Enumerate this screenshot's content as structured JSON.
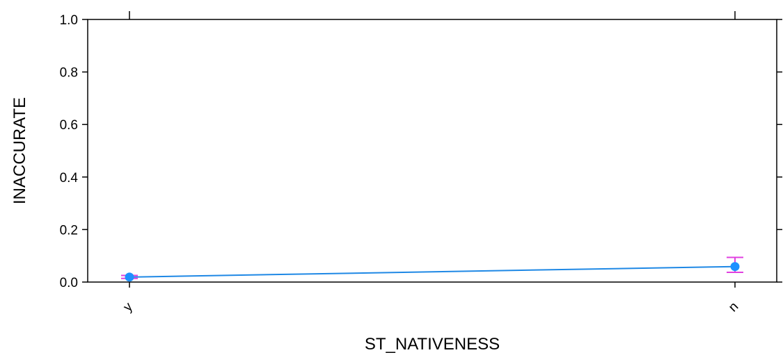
{
  "chart_data": {
    "type": "line",
    "categories": [
      "y",
      "n"
    ],
    "series": [
      {
        "values": [
          0.019,
          0.059
        ],
        "lower": [
          0.014,
          0.037
        ],
        "upper": [
          0.025,
          0.094
        ]
      }
    ],
    "xlabel": "ST_NATIVENESS",
    "ylabel": "INACCURATE",
    "ylim": [
      0,
      1
    ],
    "yticks": [
      "0.0",
      "0.2",
      "0.4",
      "0.6",
      "0.8",
      "1.0"
    ],
    "grid": false,
    "colors": {
      "line": "#1E88E5",
      "point": "#1E90FF",
      "errorbar": "#E040E0",
      "axis": "#000000"
    }
  }
}
